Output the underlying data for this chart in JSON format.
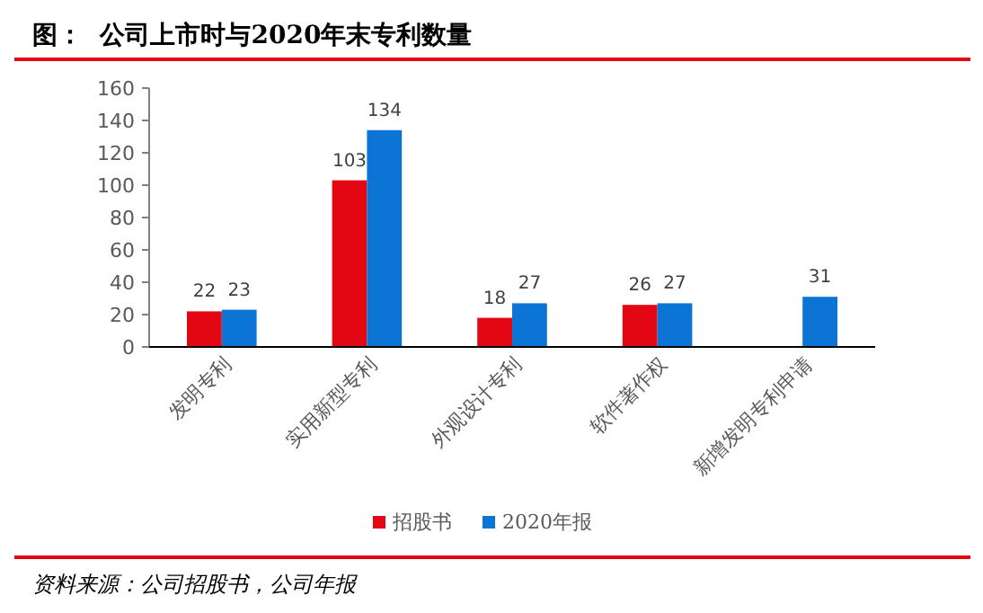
{
  "chart_data": {
    "type": "bar",
    "title": "图：  公司上市时与2020年末专利数量",
    "categories": [
      "发明专利",
      "实用新型专利",
      "外观设计专利",
      "软件著作权",
      "新增发明专利申请"
    ],
    "series": [
      {
        "name": "招股书",
        "color": "#e30613",
        "values": [
          22,
          103,
          18,
          26,
          null
        ]
      },
      {
        "name": "2020年报",
        "color": "#0c74d4",
        "values": [
          23,
          134,
          27,
          27,
          31
        ]
      }
    ],
    "ylim": [
      0,
      160
    ],
    "yticks": [
      0,
      20,
      40,
      60,
      80,
      100,
      120,
      140,
      160
    ],
    "grid": false,
    "legend": "bottom",
    "data_labels": true,
    "annotations": [
      "资料来源：公司招股书，公司年报"
    ]
  }
}
